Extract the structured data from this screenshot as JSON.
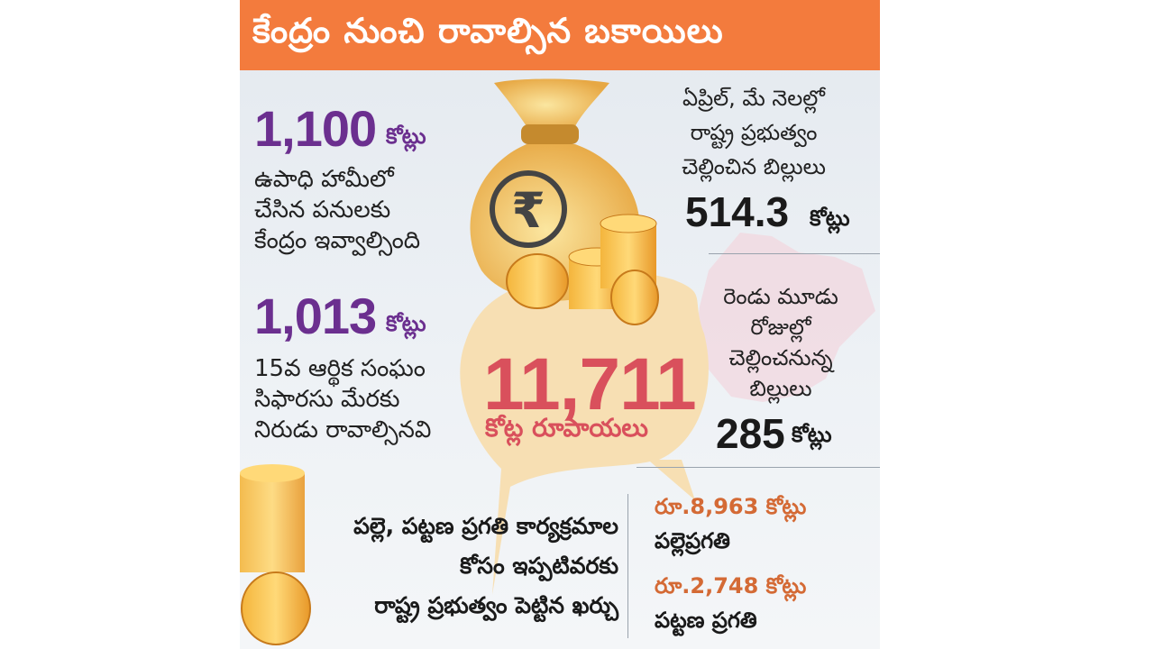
{
  "title": "కేంద్రం నుంచి రావాల్సిన బకాయిలు",
  "left": {
    "item1": {
      "amount": "1,100",
      "unit": "కోట్లు",
      "lines": [
        "ఉపాధి హామీలో",
        "చేసిన పనులకు",
        "కేంద్రం ఇవ్వాల్సింది"
      ]
    },
    "item2": {
      "amount": "1,013",
      "unit": "కోట్లు",
      "lines": [
        "15వ ఆర్థిక సంఘం",
        "సిఫారసు మేరకు",
        "నిరుడు రావాల్సినవి"
      ]
    }
  },
  "center": {
    "amount": "11,711",
    "unit": "కోట్ల రూపాయలు",
    "rupee_symbol": "₹"
  },
  "right": {
    "paid": {
      "lines": [
        "ఏప్రిల్, మే నెలల్లో",
        "రాష్ట్ర ప్రభుత్వం",
        "చెల్లించిన బిల్లులు"
      ],
      "amount": "514.3",
      "unit": "కోట్లు"
    },
    "pending": {
      "lines": [
        "రెండు మూడు",
        "రోజుల్లో",
        "చెల్లించనున్న",
        "బిల్లులు"
      ],
      "amount": "285",
      "unit": "కోట్లు"
    }
  },
  "bottom": {
    "lines": [
      "పల్లె, పట్టణ ప్రగతి కార్యక్రమాల",
      "కోసం ఇప్పటివరకు",
      "రాష్ట్ర ప్రభుత్వం పెట్టిన ఖర్చు"
    ],
    "schemes": [
      {
        "amount": "రూ.8,963 కోట్లు",
        "name": "పల్లెప్రగతి"
      },
      {
        "amount": "రూ.2,748 కోట్లు",
        "name": "పట్టణ ప్రగతి"
      }
    ]
  },
  "colors": {
    "banner": "#f37b3d",
    "purple": "#6b2f8f",
    "center_red": "#d9505c",
    "orange_amount": "#d46a35",
    "bubble": "#f7dfb3"
  }
}
